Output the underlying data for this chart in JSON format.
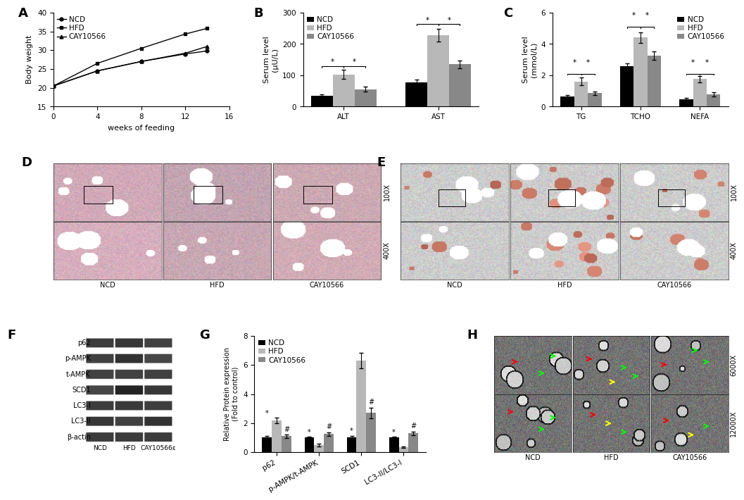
{
  "panel_A": {
    "xlabel": "weeks of feeding",
    "ylabel": "Body weight",
    "xlim": [
      0,
      16
    ],
    "ylim": [
      15,
      40
    ],
    "xticks": [
      0,
      4,
      8,
      12,
      16
    ],
    "yticks": [
      15,
      20,
      25,
      30,
      35,
      40
    ],
    "NCD": {
      "x": [
        0,
        4,
        8,
        12,
        14
      ],
      "y": [
        20.5,
        24.5,
        27.0,
        29.0,
        29.8
      ]
    },
    "HFD": {
      "x": [
        0,
        4,
        8,
        12,
        14
      ],
      "y": [
        20.5,
        26.5,
        30.5,
        34.3,
        35.8
      ]
    },
    "CAY10566": {
      "x": [
        0,
        4,
        8,
        12,
        14
      ],
      "y": [
        20.5,
        24.5,
        27.0,
        29.2,
        31.0
      ]
    },
    "legend_labels": [
      "NCD",
      "HFD",
      "CAY10566"
    ],
    "colors": [
      "black",
      "black",
      "black"
    ],
    "markers": [
      "o",
      "s",
      "^"
    ]
  },
  "panel_B": {
    "ylabel": "Serum level\n(μU/L)",
    "ylim": [
      0,
      300
    ],
    "yticks": [
      0,
      100,
      200,
      300
    ],
    "categories": [
      "ALT",
      "AST"
    ],
    "NCD": [
      35,
      78
    ],
    "HFD": [
      103,
      228
    ],
    "CAY10566": [
      55,
      135
    ],
    "NCD_err": [
      5,
      8
    ],
    "HFD_err": [
      15,
      20
    ],
    "CAY10566_err": [
      8,
      12
    ],
    "colors": [
      "black",
      "#b8b8b8",
      "#888888"
    ],
    "legend_labels": [
      "NCD",
      "HFD",
      "CAY10566"
    ]
  },
  "panel_C": {
    "ylabel": "Serum level\n(mmol/L)",
    "ylim": [
      0,
      6
    ],
    "yticks": [
      0,
      2,
      4,
      6
    ],
    "categories": [
      "TG",
      "TCHO",
      "NEFA"
    ],
    "NCD": [
      0.65,
      2.6,
      0.48
    ],
    "HFD": [
      1.6,
      4.4,
      1.75
    ],
    "CAY10566": [
      0.85,
      3.25,
      0.78
    ],
    "NCD_err": [
      0.1,
      0.15,
      0.08
    ],
    "HFD_err": [
      0.25,
      0.35,
      0.2
    ],
    "CAY10566_err": [
      0.12,
      0.25,
      0.12
    ],
    "colors": [
      "black",
      "#b8b8b8",
      "#888888"
    ],
    "legend_labels": [
      "NCD",
      "HFD",
      "CAY10566"
    ]
  },
  "panel_G": {
    "ylabel": "Relative Protein expression\n(Fold to control)",
    "ylim": [
      0,
      8
    ],
    "yticks": [
      0,
      2,
      4,
      6,
      8
    ],
    "categories": [
      "p62",
      "p-AMPK/t-AMPK",
      "SCD1",
      "LC3-II/LC3-I"
    ],
    "NCD": [
      1.0,
      1.0,
      1.0,
      1.0
    ],
    "HFD": [
      2.2,
      0.5,
      6.3,
      0.35
    ],
    "CAY10566": [
      1.1,
      1.25,
      2.7,
      1.3
    ],
    "NCD_err": [
      0.1,
      0.08,
      0.1,
      0.06
    ],
    "HFD_err": [
      0.2,
      0.1,
      0.55,
      0.06
    ],
    "CAY10566_err": [
      0.12,
      0.12,
      0.35,
      0.12
    ],
    "colors": [
      "black",
      "#b8b8b8",
      "#888888"
    ],
    "legend_labels": [
      "NCD",
      "HFD",
      "CAY10566"
    ]
  },
  "wb_labels": [
    "p62",
    "p-AMPK",
    "t-AMPK",
    "SCD1",
    "LC3-I",
    "LC3-II",
    "β-actin"
  ],
  "wb_col_labels": [
    "NCD",
    "HFD",
    "CAY10566ε"
  ],
  "label_fontsize": 13,
  "axis_fontsize": 8,
  "tick_fontsize": 7.5,
  "legend_fontsize": 7.5
}
